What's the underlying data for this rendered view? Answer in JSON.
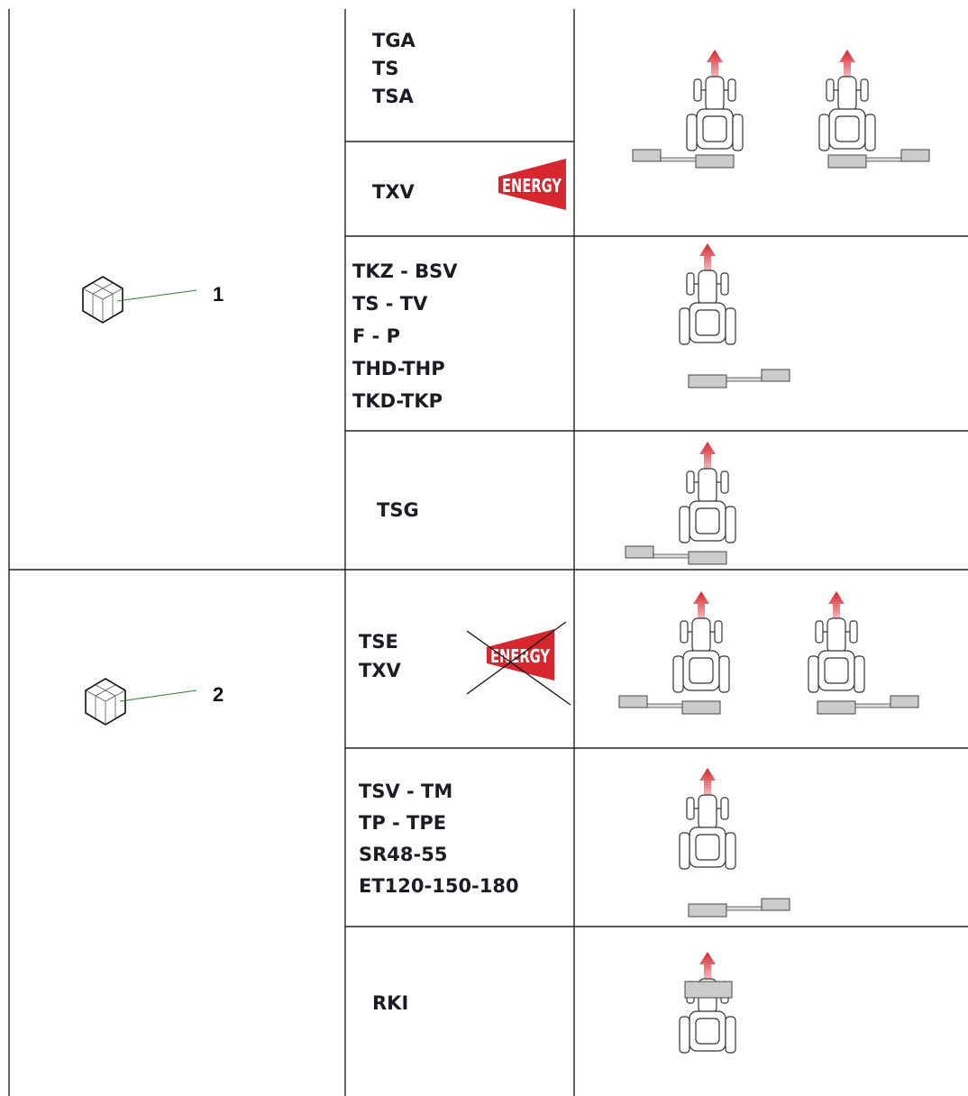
{
  "groups": [
    {
      "label": "1",
      "rows": [
        {
          "models": [
            "TGA",
            "TS",
            "TSA"
          ]
        },
        {
          "models": [
            "TXV"
          ],
          "badge": "ENERGY"
        },
        {
          "models": [
            "TKZ - BSV",
            "TS - TV",
            "F - P",
            "THD-THP",
            "TKD-TKP"
          ]
        },
        {
          "models": [
            "TSG"
          ]
        }
      ]
    },
    {
      "label": "2",
      "rows": [
        {
          "models": [
            "TSE",
            "TXV"
          ],
          "badge": "ENERGY"
        },
        {
          "models": [
            "TSV - TM",
            "TP - TPE",
            "SR48-55",
            "ET120-150-180"
          ]
        },
        {
          "models": [
            "RKI"
          ]
        }
      ]
    }
  ]
}
